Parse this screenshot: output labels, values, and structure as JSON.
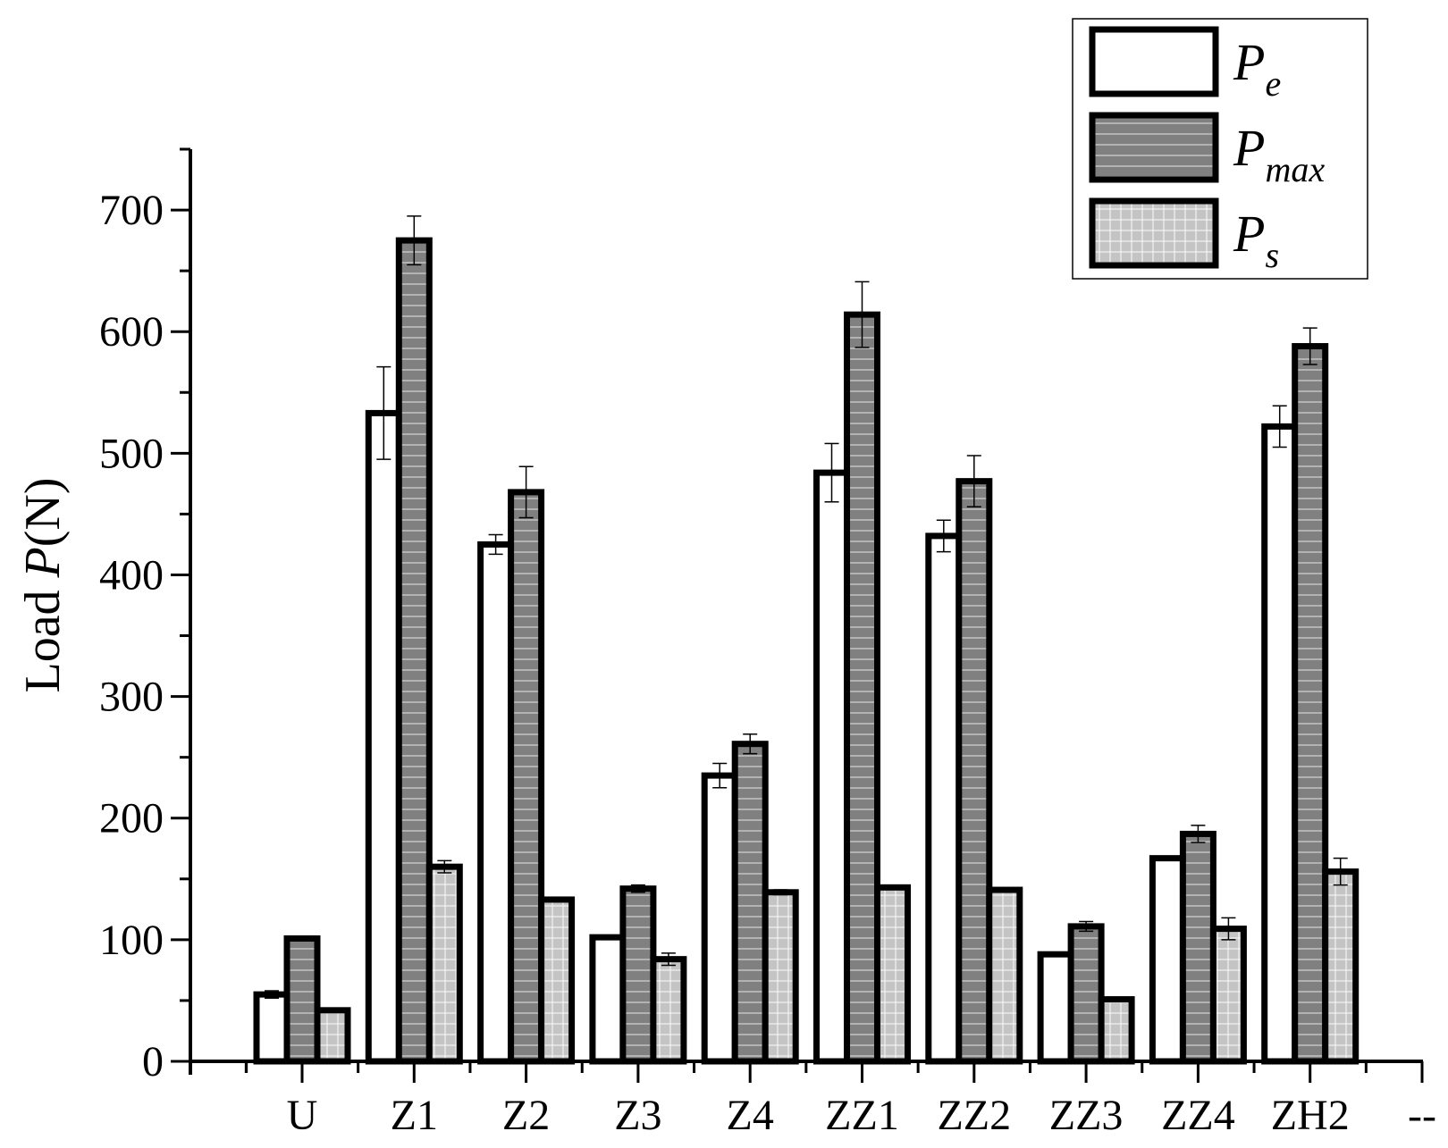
{
  "chart_data": {
    "type": "bar",
    "title": "",
    "xlabel": "",
    "ylabel": {
      "prefix": "Load ",
      "var": "P",
      "suffix": "(N)"
    },
    "ylim": [
      0,
      750
    ],
    "yticks": [
      "0",
      "100",
      "200",
      "300",
      "400",
      "500",
      "600",
      "700"
    ],
    "categories": [
      "U",
      "Z1",
      "Z2",
      "Z3",
      "Z4",
      "ZZ1",
      "ZZ2",
      "ZZ3",
      "ZZ4",
      "ZH2",
      "--"
    ],
    "series": [
      {
        "name": "P_e",
        "legend_main": "P",
        "legend_sub": "e",
        "fill": "#ffffff",
        "pattern": "none",
        "values": [
          55,
          533,
          425,
          102,
          235,
          484,
          432,
          88,
          167,
          522,
          null
        ],
        "errors": [
          3,
          38,
          8,
          0,
          10,
          24,
          13,
          0,
          0,
          17,
          null
        ]
      },
      {
        "name": "P_max",
        "legend_main": "P",
        "legend_sub": "max",
        "fill": "#808080",
        "pattern": "hlines",
        "values": [
          101,
          675,
          468,
          142,
          261,
          614,
          477,
          111,
          187,
          588,
          null
        ],
        "errors": [
          2,
          20,
          21,
          3,
          8,
          27,
          21,
          4,
          7,
          15,
          null
        ]
      },
      {
        "name": "P_s",
        "legend_main": "P",
        "legend_sub": "s",
        "fill": "#cccccc",
        "pattern": "grid",
        "values": [
          42,
          160,
          133,
          84,
          139,
          143,
          141,
          51,
          109,
          156,
          null
        ],
        "errors": [
          0,
          5,
          0,
          5,
          2,
          0,
          0,
          0,
          9,
          11,
          null
        ]
      }
    ],
    "legend": "top-right",
    "grid": false
  }
}
